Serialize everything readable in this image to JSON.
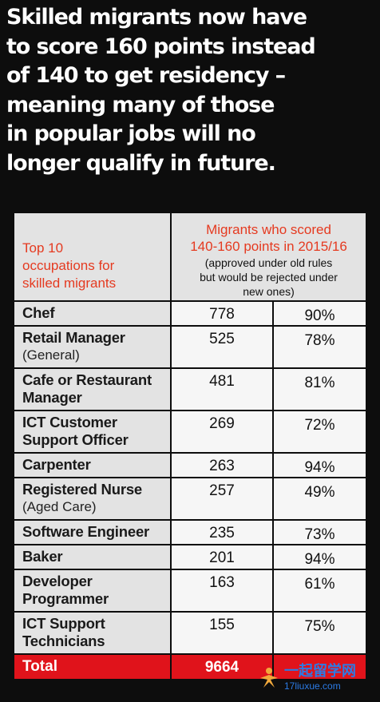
{
  "headline": [
    "Skilled migrants now have",
    "to score 160 points instead",
    "of 140 to get residency –",
    "meaning many of those",
    "in popular jobs will no",
    "longer qualify in future."
  ],
  "chart_data": {
    "type": "table",
    "header": {
      "occupation_col": [
        "Top 10",
        "occupations for",
        "skilled migrants"
      ],
      "migrants_title": [
        "Migrants who scored",
        "140-160 points in 2015/16"
      ],
      "migrants_note": [
        "(approved under old rules",
        "but  would be rejected under",
        "new ones)"
      ]
    },
    "rows": [
      {
        "name": [
          "Chef"
        ],
        "sub": "",
        "count": 778,
        "pct": "90%"
      },
      {
        "name": [
          "Retail Manager"
        ],
        "sub": "(General)",
        "count": 525,
        "pct": "78%"
      },
      {
        "name": [
          "Cafe or Restaurant",
          "Manager"
        ],
        "sub": "",
        "count": 481,
        "pct": "81%"
      },
      {
        "name": [
          "ICT Customer",
          "Support Officer"
        ],
        "sub": "",
        "count": 269,
        "pct": "72%"
      },
      {
        "name": [
          "Carpenter"
        ],
        "sub": "",
        "count": 263,
        "pct": "94%"
      },
      {
        "name": [
          "Registered Nurse"
        ],
        "sub": "(Aged Care)",
        "count": 257,
        "pct": "49%"
      },
      {
        "name": [
          "Software Engineer"
        ],
        "sub": "",
        "count": 235,
        "pct": "73%"
      },
      {
        "name": [
          "Baker"
        ],
        "sub": "",
        "count": 201,
        "pct": "94%"
      },
      {
        "name": [
          "Developer",
          "Programmer"
        ],
        "sub": "",
        "count": 163,
        "pct": "61%"
      },
      {
        "name": [
          "ICT Support",
          "Technicians"
        ],
        "sub": "",
        "count": 155,
        "pct": "75%"
      }
    ],
    "total": {
      "label": "Total",
      "count": "9664"
    }
  },
  "watermark": {
    "cn": "一起留学网",
    "url": "17liuxue.com"
  },
  "colors": {
    "accent_red": "#e53a20",
    "total_red": "#e0131b",
    "background": "#0d0d0d"
  }
}
